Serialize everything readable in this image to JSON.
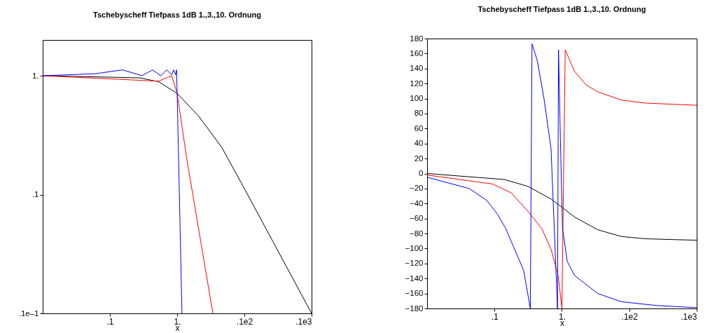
{
  "chart_data": [
    {
      "type": "line",
      "title": "Tschebyscheff Tiefpass 1dB 1.,3.,10. Ordnung",
      "xlabel": "x",
      "log": "xy",
      "grid": false,
      "xlim": [
        0.01,
        100
      ],
      "ylim": [
        0.01,
        2
      ],
      "xticks": [
        {
          "value": 0.1,
          "label": ".1"
        },
        {
          "value": 1,
          "label": "1."
        },
        {
          "value": 10,
          "label": ".1e2"
        },
        {
          "value": 100,
          "label": ".1e3"
        }
      ],
      "yticks": [
        {
          "value": 0.01,
          "label": ".1e–1"
        },
        {
          "value": 0.1,
          "label": ".1"
        },
        {
          "value": 1,
          "label": "1."
        }
      ],
      "series": [
        {
          "color": "#000000",
          "x": [
            0.01,
            0.28,
            0.53,
            1,
            2.07,
            4.6,
            10.2,
            100
          ],
          "values": [
            1,
            0.96,
            0.89,
            0.71,
            0.46,
            0.25,
            0.11,
            0.01
          ]
        },
        {
          "color": "#ff0000",
          "x": [
            0.01,
            0.53,
            0.83,
            1,
            1.39,
            3.4
          ],
          "values": [
            1,
            0.9,
            1,
            0.71,
            0.2,
            0.01
          ]
        },
        {
          "color": "#0000ff",
          "x": [
            0.01,
            0.061,
            0.154,
            0.3,
            0.43,
            0.57,
            0.7,
            0.83,
            0.89,
            0.95,
            0.98,
            1,
            1.18
          ],
          "values": [
            1,
            1.04,
            1.12,
            1,
            1.12,
            1,
            1.12,
            1.02,
            1.12,
            1.02,
            1.12,
            0.71,
            0.01
          ]
        }
      ]
    },
    {
      "type": "line",
      "title": "Tschebyscheff Tiefpass 1dB 1.,3.,10. Ordnung",
      "xlabel": "x",
      "log": "x",
      "grid": false,
      "xlim": [
        0.01,
        100
      ],
      "ylim": [
        -180,
        180
      ],
      "xticks": [
        {
          "value": 0.1,
          "label": ".1"
        },
        {
          "value": 1,
          "label": "1."
        },
        {
          "value": 10,
          "label": ".1e2"
        },
        {
          "value": 100,
          "label": ".1e3"
        }
      ],
      "yticks": [
        -180,
        -160,
        -140,
        -120,
        -100,
        -80,
        -60,
        -40,
        -20,
        0,
        20,
        40,
        60,
        80,
        100,
        120,
        140,
        160,
        180
      ],
      "series": [
        {
          "color": "#000000",
          "x": [
            0.01,
            0.14,
            0.31,
            0.69,
            1,
            1.54,
            3.4,
            7.6,
            17,
            100
          ],
          "values": [
            0,
            -8,
            -17,
            -34,
            -45,
            -58,
            -75,
            -84,
            -87,
            -89
          ]
        },
        {
          "color": "#ff0000",
          "x": [
            0.01,
            0.094,
            0.178,
            0.31,
            0.5,
            0.69,
            0.88,
            1,
            1.12,
            1.54,
            2.3,
            3.4,
            7.6,
            17,
            100
          ],
          "values": [
            -2,
            -14,
            -26,
            -50,
            -73,
            -101,
            -136,
            -180,
            165,
            136,
            118,
            109,
            98,
            94,
            91
          ]
        },
        {
          "color": "#0000ff",
          "x": [
            0.01,
            0.042,
            0.077,
            0.11,
            0.146,
            0.19,
            0.27,
            0.34,
            0.36,
            0.43,
            0.54,
            0.69,
            0.86,
            0.89,
            0.95,
            1.02,
            1.2,
            1.54,
            3.4,
            7.6,
            25,
            100
          ],
          "values": [
            -5,
            -20,
            -36,
            -54,
            -73,
            -97,
            -129,
            -180,
            173,
            151,
            101,
            33,
            -180,
            165,
            45,
            -73,
            -117,
            -136,
            -160,
            -171,
            -176,
            -179
          ]
        }
      ]
    }
  ]
}
